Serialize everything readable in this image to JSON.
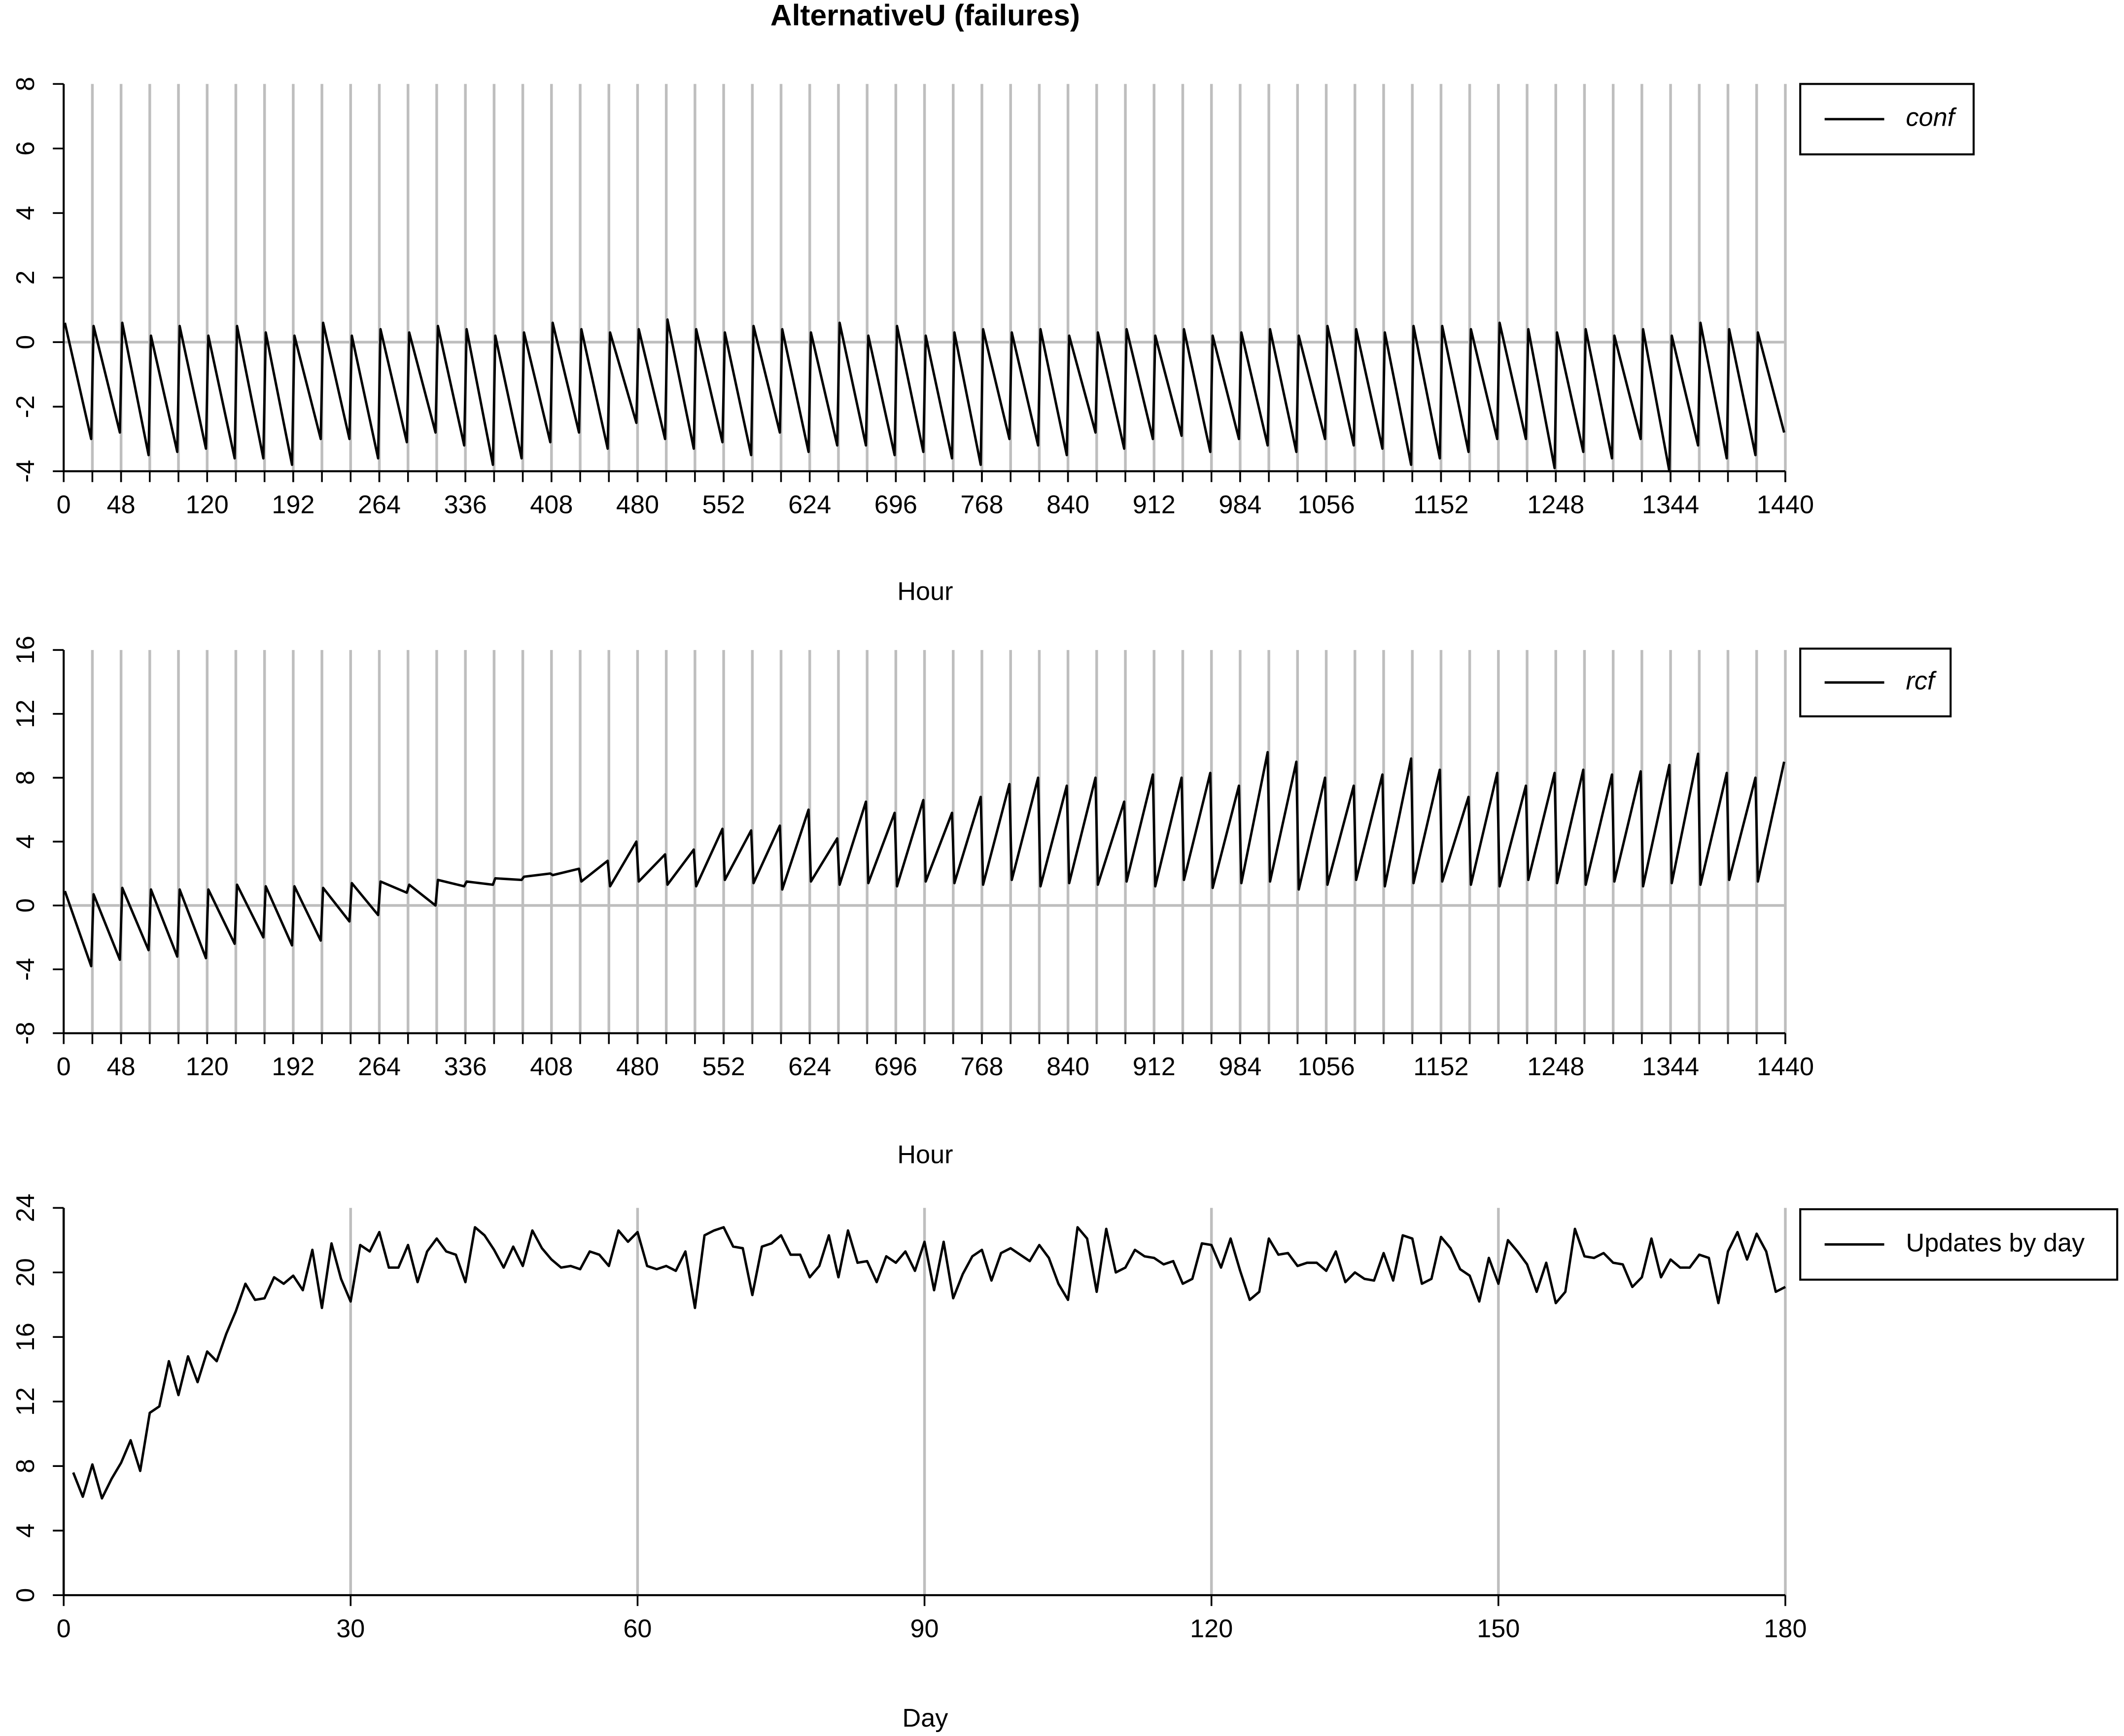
{
  "chart_data": [
    {
      "type": "line",
      "title": "AlternativeU (failures)",
      "xlabel": "Hour",
      "x": [
        1,
        23,
        25,
        47,
        49,
        71,
        73,
        95,
        97,
        119,
        121,
        143,
        145,
        167,
        169,
        191,
        193,
        215,
        217,
        239,
        241,
        263,
        265,
        287,
        289,
        311,
        313,
        335,
        337,
        359,
        361,
        383,
        385,
        407,
        409,
        431,
        433,
        455,
        457,
        479,
        481,
        503,
        505,
        527,
        529,
        551,
        553,
        575,
        577,
        599,
        601,
        623,
        625,
        647,
        649,
        671,
        673,
        695,
        697,
        719,
        721,
        743,
        745,
        767,
        769,
        791,
        793,
        815,
        817,
        839,
        841,
        863,
        865,
        887,
        889,
        911,
        913,
        935,
        937,
        959,
        961,
        983,
        985,
        1007,
        1009,
        1031,
        1033,
        1055,
        1057,
        1079,
        1081,
        1103,
        1105,
        1127,
        1129,
        1151,
        1153,
        1175,
        1177,
        1199,
        1201,
        1223,
        1225,
        1247,
        1249,
        1271,
        1273,
        1295,
        1297,
        1319,
        1321,
        1343,
        1345,
        1367,
        1369,
        1391,
        1393,
        1415,
        1417,
        1439
      ],
      "series": [
        {
          "name": "conf",
          "color": "#000000",
          "values": [
            0.6,
            -3,
            0.5,
            -2.8,
            0.6,
            -3.5,
            0.2,
            -3.4,
            0.5,
            -3.3,
            0.2,
            -3.6,
            0.5,
            -3.6,
            0.3,
            -3.8,
            0.2,
            -3.0,
            0.6,
            -3.0,
            0.2,
            -3.6,
            0.4,
            -3.1,
            0.3,
            -2.8,
            0.5,
            -3.2,
            0.4,
            -3.8,
            0.2,
            -3.6,
            0.3,
            -3.1,
            0.6,
            -2.8,
            0.4,
            -3.3,
            0.3,
            -2.5,
            0.4,
            -3.0,
            0.7,
            -3.3,
            0.4,
            -3.1,
            0.3,
            -3.5,
            0.5,
            -2.8,
            0.4,
            -3.4,
            0.3,
            -3.2,
            0.6,
            -3.2,
            0.2,
            -3.5,
            0.5,
            -3.4,
            0.2,
            -3.6,
            0.3,
            -3.8,
            0.4,
            -3.0,
            0.3,
            -3.2,
            0.4,
            -3.5,
            0.2,
            -2.8,
            0.3,
            -3.3,
            0.4,
            -3.0,
            0.2,
            -2.9,
            0.4,
            -3.4,
            0.2,
            -3.0,
            0.3,
            -3.2,
            0.4,
            -3.4,
            0.2,
            -3.0,
            0.5,
            -3.2,
            0.4,
            -3.3,
            0.3,
            -3.8,
            0.5,
            -3.6,
            0.5,
            -3.4,
            0.4,
            -3.0,
            0.6,
            -3.0,
            0.4,
            -3.9,
            0.3,
            -3.4,
            0.4,
            -3.6,
            0.2,
            -3.0,
            0.4,
            -4.0,
            0.2,
            -3.2,
            0.6,
            -3.6,
            0.4,
            -3.5,
            0.3,
            -2.8
          ]
        }
      ],
      "xlim": [
        0,
        1440
      ],
      "ylim": [
        -4,
        8
      ],
      "xticks": [
        0,
        48,
        120,
        192,
        264,
        336,
        408,
        480,
        552,
        624,
        696,
        768,
        840,
        912,
        984,
        1056,
        1152,
        1248,
        1344,
        1440
      ],
      "yticks": [
        -4,
        -2,
        0,
        2,
        4,
        6,
        8
      ],
      "vlines": [
        24,
        48,
        72,
        96,
        120,
        144,
        168,
        192,
        216,
        240,
        264,
        288,
        312,
        336,
        360,
        384,
        408,
        432,
        456,
        480,
        504,
        528,
        552,
        576,
        600,
        624,
        648,
        672,
        696,
        720,
        744,
        768,
        792,
        816,
        840,
        864,
        888,
        912,
        936,
        960,
        984,
        1008,
        1032,
        1056,
        1080,
        1104,
        1128,
        1152,
        1176,
        1200,
        1224,
        1248,
        1272,
        1296,
        1320,
        1344,
        1368,
        1392,
        1416,
        1440
      ],
      "hline": 0,
      "legend_italic": true
    },
    {
      "type": "line",
      "xlabel": "Hour",
      "x": [
        1,
        23,
        25,
        47,
        49,
        71,
        73,
        95,
        97,
        119,
        121,
        143,
        145,
        167,
        169,
        191,
        193,
        215,
        217,
        239,
        241,
        263,
        265,
        287,
        289,
        311,
        313,
        335,
        337,
        359,
        361,
        383,
        385,
        407,
        409,
        431,
        433,
        455,
        457,
        479,
        481,
        503,
        505,
        527,
        529,
        551,
        553,
        575,
        577,
        599,
        601,
        623,
        625,
        647,
        649,
        671,
        673,
        695,
        697,
        719,
        721,
        743,
        745,
        767,
        769,
        791,
        793,
        815,
        817,
        839,
        841,
        863,
        865,
        887,
        889,
        911,
        913,
        935,
        937,
        959,
        961,
        983,
        985,
        1007,
        1009,
        1031,
        1033,
        1055,
        1057,
        1079,
        1081,
        1103,
        1105,
        1127,
        1129,
        1151,
        1153,
        1175,
        1177,
        1199,
        1201,
        1223,
        1225,
        1247,
        1249,
        1271,
        1273,
        1295,
        1297,
        1319,
        1321,
        1343,
        1345,
        1367,
        1369,
        1391,
        1393,
        1415,
        1417,
        1439
      ],
      "series": [
        {
          "name": "rcf",
          "color": "#000000",
          "values": [
            0.9,
            -3.8,
            0.7,
            -3.4,
            1.1,
            -2.8,
            1.0,
            -3.2,
            1.0,
            -3.3,
            1.0,
            -2.4,
            1.3,
            -2.0,
            1.2,
            -2.5,
            1.2,
            -2.2,
            1.1,
            -1.0,
            1.4,
            -0.6,
            1.5,
            0.8,
            1.3,
            0,
            1.6,
            1.2,
            1.5,
            1.3,
            1.7,
            1.6,
            1.8,
            2.0,
            1.9,
            2.3,
            1.5,
            2.8,
            1.2,
            4.0,
            1.5,
            3.2,
            1.3,
            3.5,
            1.2,
            4.8,
            1.6,
            4.7,
            1.4,
            5.0,
            1.0,
            6.0,
            1.5,
            4.2,
            1.3,
            6.5,
            1.4,
            5.8,
            1.2,
            6.6,
            1.5,
            5.8,
            1.4,
            6.8,
            1.3,
            7.6,
            1.6,
            8.0,
            1.2,
            7.5,
            1.4,
            8.0,
            1.3,
            6.5,
            1.5,
            8.2,
            1.2,
            8.0,
            1.6,
            8.3,
            1.1,
            7.5,
            1.4,
            9.6,
            1.5,
            9.0,
            1.0,
            8.0,
            1.3,
            7.5,
            1.6,
            8.2,
            1.2,
            9.2,
            1.4,
            8.5,
            1.5,
            6.8,
            1.3,
            8.3,
            1.2,
            7.5,
            1.6,
            8.3,
            1.4,
            8.5,
            1.3,
            8.2,
            1.5,
            8.4,
            1.2,
            8.8,
            1.4,
            9.5,
            1.3,
            8.3,
            1.6,
            8.0,
            1.5,
            9.0
          ]
        }
      ],
      "xlim": [
        0,
        1440
      ],
      "ylim": [
        -8,
        16
      ],
      "xticks": [
        0,
        48,
        120,
        192,
        264,
        336,
        408,
        480,
        552,
        624,
        696,
        768,
        840,
        912,
        984,
        1056,
        1152,
        1248,
        1344,
        1440
      ],
      "yticks": [
        -8,
        -4,
        0,
        4,
        8,
        12,
        16
      ],
      "vlines": [
        24,
        48,
        72,
        96,
        120,
        144,
        168,
        192,
        216,
        240,
        264,
        288,
        312,
        336,
        360,
        384,
        408,
        432,
        456,
        480,
        504,
        528,
        552,
        576,
        600,
        624,
        648,
        672,
        696,
        720,
        744,
        768,
        792,
        816,
        840,
        864,
        888,
        912,
        936,
        960,
        984,
        1008,
        1032,
        1056,
        1080,
        1104,
        1128,
        1152,
        1176,
        1200,
        1224,
        1248,
        1272,
        1296,
        1320,
        1344,
        1368,
        1392,
        1416,
        1440
      ],
      "hline": 0,
      "legend_italic": true
    },
    {
      "type": "line",
      "xlabel": "Day",
      "x": [
        1,
        2,
        3,
        4,
        5,
        6,
        7,
        8,
        9,
        10,
        11,
        12,
        13,
        14,
        15,
        16,
        17,
        18,
        19,
        20,
        21,
        22,
        23,
        24,
        25,
        26,
        27,
        28,
        29,
        30,
        31,
        32,
        33,
        34,
        35,
        36,
        37,
        38,
        39,
        40,
        41,
        42,
        43,
        44,
        45,
        46,
        47,
        48,
        49,
        50,
        51,
        52,
        53,
        54,
        55,
        56,
        57,
        58,
        59,
        60,
        61,
        62,
        63,
        64,
        65,
        66,
        67,
        68,
        69,
        70,
        71,
        72,
        73,
        74,
        75,
        76,
        77,
        78,
        79,
        80,
        81,
        82,
        83,
        84,
        85,
        86,
        87,
        88,
        89,
        90,
        91,
        92,
        93,
        94,
        95,
        96,
        97,
        98,
        99,
        100,
        101,
        102,
        103,
        104,
        105,
        106,
        107,
        108,
        109,
        110,
        111,
        112,
        113,
        114,
        115,
        116,
        117,
        118,
        119,
        120,
        121,
        122,
        123,
        124,
        125,
        126,
        127,
        128,
        129,
        130,
        131,
        132,
        133,
        134,
        135,
        136,
        137,
        138,
        139,
        140,
        141,
        142,
        143,
        144,
        145,
        146,
        147,
        148,
        149,
        150,
        151,
        152,
        153,
        154,
        155,
        156,
        157,
        158,
        159,
        160,
        161,
        162,
        163,
        164,
        165,
        166,
        167,
        168,
        169,
        170,
        171,
        172,
        173,
        174,
        175,
        176,
        177,
        178,
        179,
        180
      ],
      "series": [
        {
          "name": "Updates by day",
          "color": "#000000",
          "values": [
            7.6,
            6.1,
            8.1,
            6.0,
            7.2,
            8.2,
            9.6,
            7.7,
            11.3,
            11.7,
            14.5,
            12.4,
            14.8,
            13.2,
            15.1,
            14.5,
            16.2,
            17.6,
            19.3,
            18.3,
            18.4,
            19.7,
            19.3,
            19.8,
            18.9,
            21.4,
            17.8,
            21.8,
            19.6,
            18.2,
            21.7,
            21.3,
            22.5,
            20.3,
            20.3,
            21.7,
            19.4,
            21.3,
            22.1,
            21.3,
            21.1,
            19.4,
            22.8,
            22.3,
            21.4,
            20.3,
            21.6,
            20.4,
            22.6,
            21.5,
            20.8,
            20.3,
            20.4,
            20.2,
            21.3,
            21.1,
            20.4,
            22.6,
            21.9,
            22.5,
            20.4,
            20.2,
            20.4,
            20.1,
            21.3,
            17.8,
            22.3,
            22.6,
            22.8,
            21.6,
            21.5,
            18.6,
            21.6,
            21.8,
            22.3,
            21.1,
            21.1,
            19.7,
            20.4,
            22.3,
            19.7,
            22.6,
            20.6,
            20.7,
            19.4,
            21.0,
            20.6,
            21.3,
            20.1,
            21.9,
            18.9,
            21.9,
            18.4,
            19.9,
            21.0,
            21.4,
            19.5,
            21.2,
            21.5,
            21.1,
            20.7,
            21.7,
            20.9,
            19.3,
            18.3,
            22.8,
            22.1,
            18.8,
            22.7,
            20.0,
            20.3,
            21.4,
            21.0,
            20.9,
            20.5,
            20.7,
            19.3,
            19.6,
            21.8,
            21.7,
            20.3,
            22.1,
            20.1,
            18.3,
            18.8,
            22.1,
            21.1,
            21.2,
            20.4,
            20.6,
            20.6,
            20.1,
            21.3,
            19.4,
            20.0,
            19.6,
            19.5,
            21.2,
            19.5,
            22.3,
            22.1,
            19.3,
            19.6,
            22.2,
            21.5,
            20.2,
            19.8,
            18.2,
            20.9,
            19.3,
            22.0,
            21.3,
            20.5,
            18.8,
            20.6,
            18.1,
            18.8,
            22.7,
            21.0,
            20.9,
            21.2,
            20.6,
            20.5,
            19.1,
            19.7,
            22.1,
            19.7,
            20.8,
            20.3,
            20.3,
            21.1,
            20.9,
            18.1,
            21.3,
            22.5,
            20.8,
            22.4,
            21.3,
            18.8,
            19.1
          ]
        }
      ],
      "xlim": [
        0,
        180
      ],
      "ylim": [
        0,
        24
      ],
      "xticks": [
        0,
        30,
        60,
        90,
        120,
        150,
        180
      ],
      "yticks": [
        0,
        4,
        8,
        12,
        16,
        20,
        24
      ],
      "xgrid": true,
      "legend_italic": false
    }
  ]
}
